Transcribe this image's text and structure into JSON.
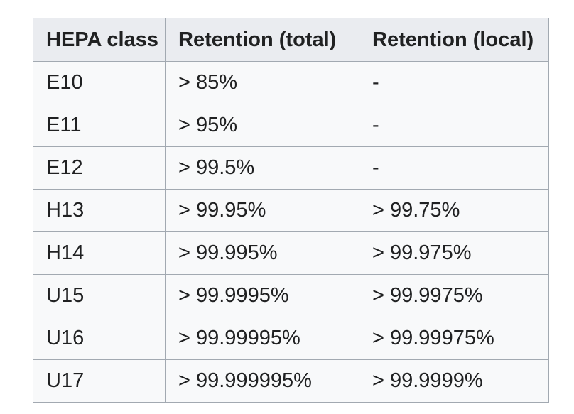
{
  "colors": {
    "page_bg": "#ffffff",
    "header_bg": "#eaecf0",
    "cell_bg": "#f8f9fa",
    "border": "#a2a9b1",
    "text": "#202122"
  },
  "chart_data": {
    "type": "table",
    "columns": [
      "HEPA class",
      "Retention (total)",
      "Retention (local)"
    ],
    "rows": [
      [
        "E10",
        "> 85%",
        "-"
      ],
      [
        "E11",
        "> 95%",
        "-"
      ],
      [
        "E12",
        "> 99.5%",
        "-"
      ],
      [
        "H13",
        "> 99.95%",
        "> 99.75%"
      ],
      [
        "H14",
        "> 99.995%",
        "> 99.975%"
      ],
      [
        "U15",
        "> 99.9995%",
        "> 99.9975%"
      ],
      [
        "U16",
        "> 99.99995%",
        "> 99.99975%"
      ],
      [
        "U17",
        "> 99.999995%",
        "> 99.9999%"
      ]
    ]
  }
}
